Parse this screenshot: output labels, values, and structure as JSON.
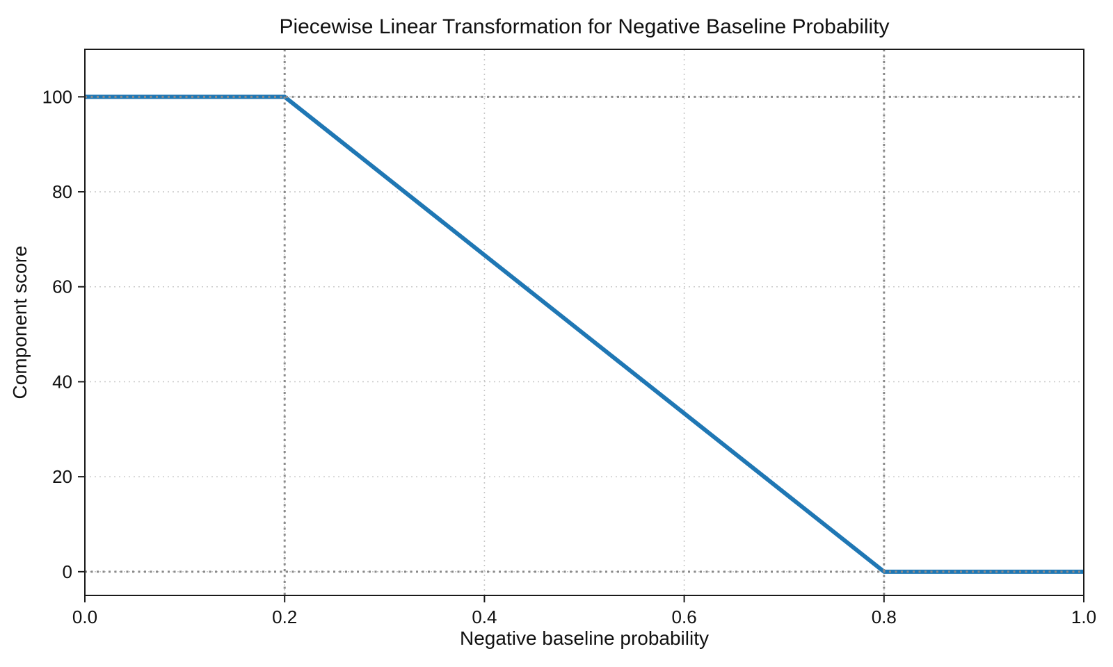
{
  "chart_data": {
    "type": "line",
    "title": "Piecewise Linear Transformation for Negative Baseline Probability",
    "xlabel": "Negative baseline probability",
    "ylabel": "Component score",
    "xlim": [
      0,
      1
    ],
    "ylim": [
      -5,
      110
    ],
    "xticks": [
      0.0,
      0.2,
      0.4,
      0.6,
      0.8,
      1.0
    ],
    "xtick_labels": [
      "0.0",
      "0.2",
      "0.4",
      "0.6",
      "0.8",
      "1.0"
    ],
    "yticks": [
      0,
      20,
      40,
      60,
      80,
      100
    ],
    "ytick_labels": [
      "0",
      "20",
      "40",
      "60",
      "80",
      "100"
    ],
    "grid": {
      "on": true,
      "style": "dotted",
      "color": "#c9c9c9",
      "width": 1.6
    },
    "series": [
      {
        "name": "component-score-line",
        "x": [
          0.0,
          0.2,
          0.8,
          1.0
        ],
        "y": [
          100,
          100,
          0,
          0
        ],
        "color": "#1f77b4",
        "width": 6
      }
    ],
    "reference_lines": {
      "vertical_x": [
        0.2,
        0.8
      ],
      "horizontal_y": [
        0,
        100
      ],
      "color": "#8a8a8a",
      "style": "dotted",
      "width": 3
    },
    "legend_position": "none",
    "breakpoints_note": "flat at 100 until x=0.2, linear to 0 at x=0.8, flat at 0 after"
  },
  "style": {
    "spine_color": "#1a1a1a",
    "tick_color": "#1a1a1a",
    "text_color": "#111111",
    "background": "#ffffff"
  }
}
